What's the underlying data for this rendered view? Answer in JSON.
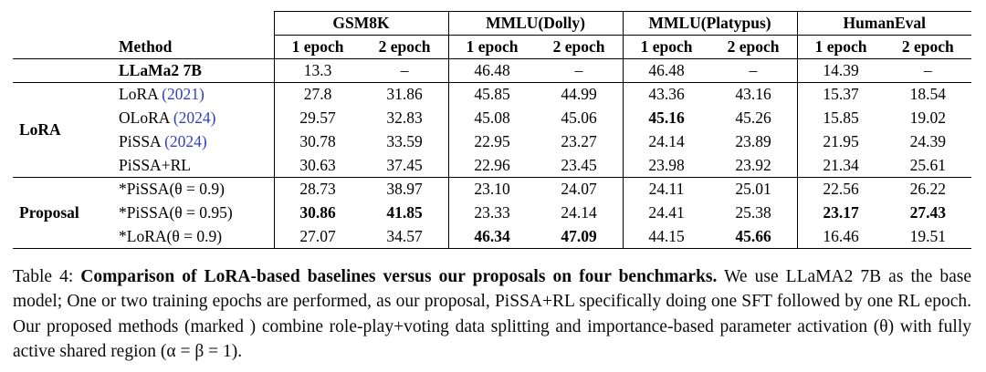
{
  "table": {
    "method_header": "Method",
    "benchmark_groups": [
      "GSM8K",
      "MMLU(Dolly)",
      "MMLU(Platypus)",
      "HumanEval"
    ],
    "epoch_headers": [
      "1 epoch",
      "2 epoch"
    ],
    "base_row": {
      "method": "LLaMa2 7B",
      "cite": "",
      "values": [
        "13.3",
        "–",
        "46.48",
        "–",
        "46.48",
        "–",
        "14.39",
        "–"
      ],
      "bold": []
    },
    "groups": [
      {
        "label": "LoRA",
        "rows": [
          {
            "method": "LoRA",
            "cite": "(2021)",
            "values": [
              "27.8",
              "31.86",
              "45.85",
              "44.99",
              "43.36",
              "43.16",
              "15.37",
              "18.54"
            ],
            "bold": []
          },
          {
            "method": "OLoRA",
            "cite": "(2024)",
            "values": [
              "29.57",
              "32.83",
              "45.08",
              "45.06",
              "45.16",
              "45.26",
              "15.85",
              "19.02"
            ],
            "bold": [
              4
            ]
          },
          {
            "method": "PiSSA",
            "cite": "(2024)",
            "values": [
              "30.78",
              "33.59",
              "22.95",
              "23.27",
              "24.14",
              "23.89",
              "21.95",
              "24.39"
            ],
            "bold": []
          },
          {
            "method": "PiSSA+RL",
            "cite": "",
            "values": [
              "30.63",
              "37.45",
              "22.96",
              "23.45",
              "23.98",
              "23.92",
              "21.34",
              "25.61"
            ],
            "bold": []
          }
        ]
      },
      {
        "label": "Proposal",
        "rows": [
          {
            "method": "*PiSSA(θ = 0.9)",
            "cite": "",
            "values": [
              "28.73",
              "38.97",
              "23.10",
              "24.07",
              "24.11",
              "25.01",
              "22.56",
              "26.22"
            ],
            "bold": []
          },
          {
            "method": "*PiSSA(θ = 0.95)",
            "cite": "",
            "values": [
              "30.86",
              "41.85",
              "23.33",
              "24.14",
              "24.41",
              "25.38",
              "23.17",
              "27.43"
            ],
            "bold": [
              0,
              1,
              6,
              7
            ]
          },
          {
            "method": "*LoRA(θ = 0.9)",
            "cite": "",
            "values": [
              "27.07",
              "34.57",
              "46.34",
              "47.09",
              "44.15",
              "45.66",
              "16.46",
              "19.51"
            ],
            "bold": [
              2,
              3,
              5
            ]
          }
        ]
      }
    ]
  },
  "caption": {
    "prefix": "Table 4: ",
    "bold": "Comparison of LoRA-based baselines versus our proposals on four benchmarks.",
    "rest": " We use LLaMA2 7B as the base model; One or two training epochs are performed, as our proposal, PiSSA+RL specifically doing one SFT followed by one RL epoch. Our proposed methods (marked ) combine role-play+voting data splitting and importance-based parameter activation (θ) with fully active shared region (α = β = 1)."
  },
  "colors": {
    "citation_blue": "#3141c4",
    "text": "#000000"
  }
}
